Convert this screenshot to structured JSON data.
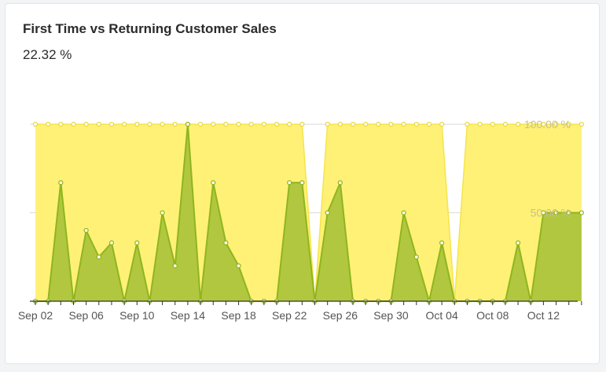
{
  "widget": {
    "title": "First Time vs Returning Customer Sales",
    "value": "22.32 %"
  },
  "chart_data": {
    "type": "area",
    "x": [
      "2023-09-02",
      "2023-09-03",
      "2023-09-04",
      "2023-09-05",
      "2023-09-06",
      "2023-09-07",
      "2023-09-08",
      "2023-09-09",
      "2023-09-10",
      "2023-09-11",
      "2023-09-12",
      "2023-09-13",
      "2023-09-14",
      "2023-09-15",
      "2023-09-16",
      "2023-09-17",
      "2023-09-18",
      "2023-09-19",
      "2023-09-20",
      "2023-09-21",
      "2023-09-22",
      "2023-09-23",
      "2023-09-24",
      "2023-09-25",
      "2023-09-26",
      "2023-09-27",
      "2023-09-28",
      "2023-09-29",
      "2023-09-30",
      "2023-10-01",
      "2023-10-02",
      "2023-10-03",
      "2023-10-04",
      "2023-10-05",
      "2023-10-06",
      "2023-10-07",
      "2023-10-08",
      "2023-10-09",
      "2023-10-10",
      "2023-10-11",
      "2023-10-12",
      "2023-10-13",
      "2023-10-14",
      "2023-10-15"
    ],
    "series": [
      {
        "color": "#fff176",
        "values": [
          100,
          100,
          100,
          100,
          100,
          100,
          100,
          100,
          100,
          100,
          100,
          100,
          100,
          100,
          100,
          100,
          100,
          100,
          100,
          100,
          100,
          100,
          0,
          100,
          100,
          100,
          100,
          100,
          100,
          100,
          100,
          100,
          100,
          0,
          100,
          100,
          100,
          100,
          100,
          100,
          100,
          100,
          100,
          100
        ]
      },
      {
        "color": "#a8c23a",
        "values": [
          0,
          0,
          67,
          0,
          40,
          25,
          33,
          0,
          33,
          0,
          50,
          20,
          100,
          0,
          67,
          33,
          20,
          0,
          0,
          0,
          67,
          67,
          0,
          50,
          67,
          0,
          0,
          0,
          0,
          50,
          25,
          0,
          33,
          0,
          0,
          0,
          0,
          0,
          33,
          0,
          50,
          50,
          50,
          50
        ]
      }
    ],
    "x_ticks": [
      "Sep 02",
      "Sep 06",
      "Sep 10",
      "Sep 14",
      "Sep 18",
      "Sep 22",
      "Sep 26",
      "Sep 30",
      "Oct 04",
      "Oct 08",
      "Oct 12"
    ],
    "y_ticks": [
      "100.00 %",
      "50.00 %"
    ],
    "ylim": [
      0,
      100
    ],
    "grid": true,
    "legend": "none"
  }
}
